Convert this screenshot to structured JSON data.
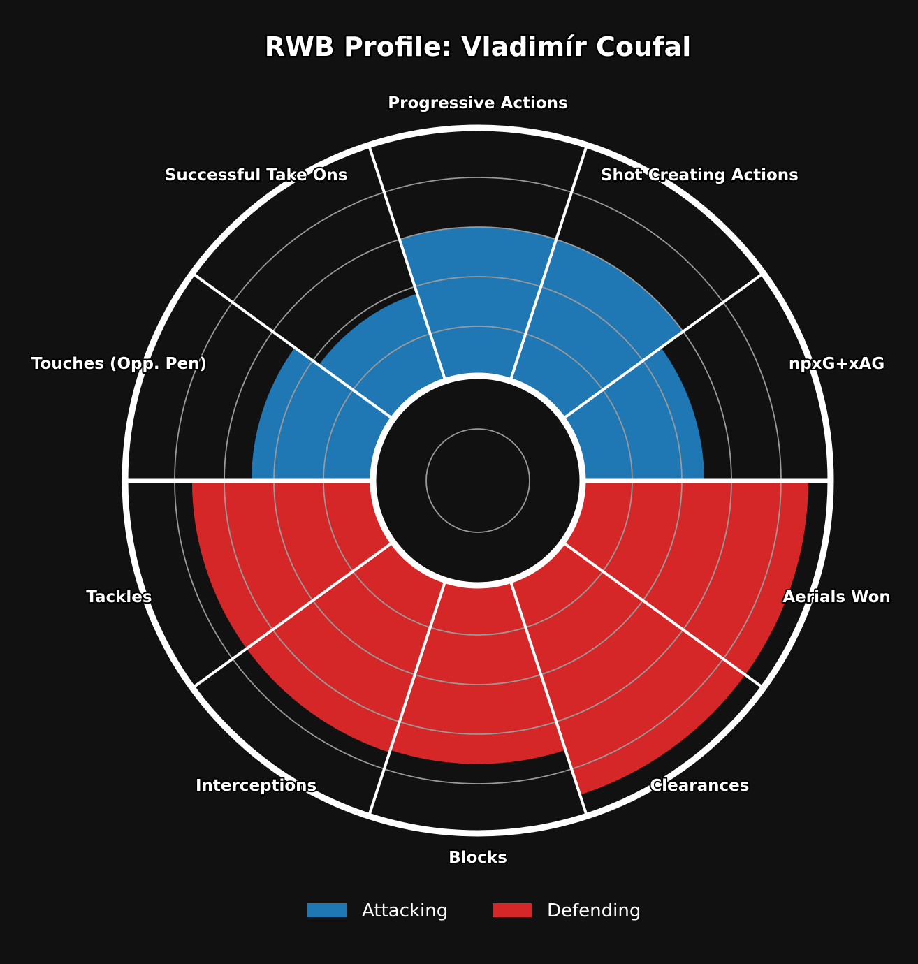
{
  "colors": {
    "background": "#111111",
    "attacking": "#1f77b4",
    "defending": "#d62728",
    "outline": "#ffffff",
    "grid": "#9a9a9a"
  },
  "chart_data": {
    "type": "pie",
    "subtype": "polar-bar (radar pizza)",
    "title": "RWB Profile: Vladimír Coufal",
    "rlim": [
      0,
      100
    ],
    "grid": true,
    "legend_position": "bottom-center",
    "categories": [
      "npxG+xAG",
      "Shot Creating Actions",
      "Progressive Actions",
      "Successful Take Ons",
      "Touches (Opp. Pen)",
      "Tackles",
      "Interceptions",
      "Blocks",
      "Clearances",
      "Aerials Won"
    ],
    "values": [
      49,
      60,
      60,
      37,
      49,
      73,
      73,
      72,
      91,
      91
    ],
    "groups": [
      "Attacking",
      "Attacking",
      "Attacking",
      "Attacking",
      "Attacking",
      "Defending",
      "Defending",
      "Defending",
      "Defending",
      "Defending"
    ],
    "series": [
      {
        "name": "Attacking",
        "color": "#1f77b4"
      },
      {
        "name": "Defending",
        "color": "#d62728"
      }
    ]
  }
}
